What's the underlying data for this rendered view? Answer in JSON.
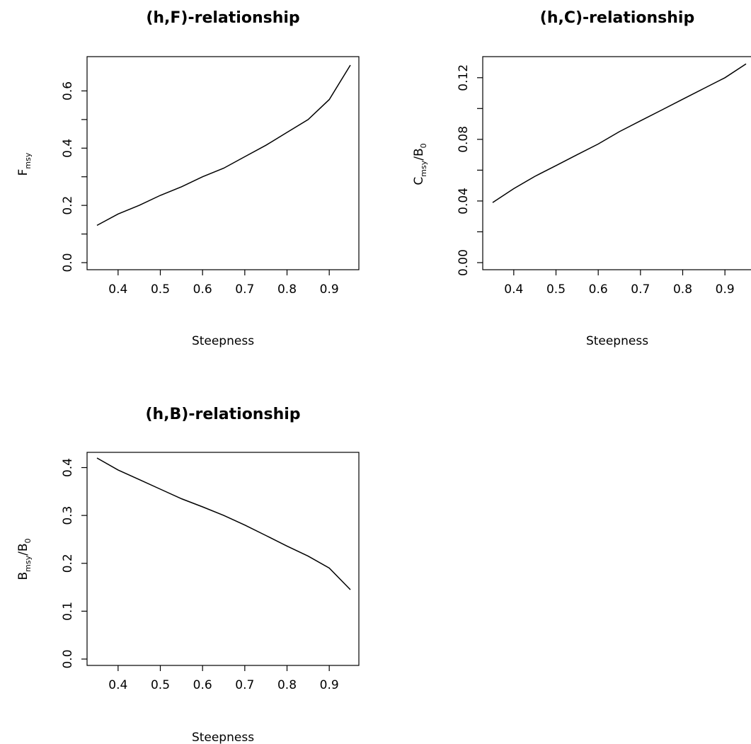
{
  "chart_data": [
    {
      "type": "line",
      "title": "(h,F)-relationship",
      "xlabel": "Steepness",
      "ylabel": "F_msy",
      "ylabel_parts": {
        "main": "F",
        "sub": "msy",
        "slash": "",
        "main2": "",
        "sub2": ""
      },
      "xlim": [
        0.35,
        0.95
      ],
      "ylim": [
        0.0,
        0.7
      ],
      "xticks": [
        0.4,
        0.5,
        0.6,
        0.7,
        0.8,
        0.9
      ],
      "xtick_labels": [
        "0.4",
        "0.5",
        "0.6",
        "0.7",
        "0.8",
        "0.9"
      ],
      "yticks": [
        0.0,
        0.1,
        0.2,
        0.3,
        0.4,
        0.5,
        0.6
      ],
      "ytick_labels": [
        "0.0",
        "",
        "0.2",
        "",
        "0.4",
        "",
        "0.6"
      ],
      "series": [
        {
          "x": [
            0.35,
            0.4,
            0.45,
            0.5,
            0.55,
            0.6,
            0.65,
            0.7,
            0.75,
            0.8,
            0.85,
            0.9,
            0.95
          ],
          "y": [
            0.13,
            0.17,
            0.2,
            0.235,
            0.265,
            0.3,
            0.33,
            0.37,
            0.41,
            0.455,
            0.5,
            0.57,
            0.69
          ]
        }
      ],
      "grid": false
    },
    {
      "type": "line",
      "title": "(h,C)-relationship",
      "xlabel": "Steepness",
      "ylabel": "C_msy/B_0",
      "ylabel_parts": {
        "main": "C",
        "sub": "msy",
        "slash": "/",
        "main2": "B",
        "sub2": "0"
      },
      "xlim": [
        0.35,
        0.95
      ],
      "ylim": [
        0.0,
        0.13
      ],
      "xticks": [
        0.4,
        0.5,
        0.6,
        0.7,
        0.8,
        0.9
      ],
      "xtick_labels": [
        "0.4",
        "0.5",
        "0.6",
        "0.7",
        "0.8",
        "0.9"
      ],
      "yticks": [
        0.0,
        0.02,
        0.04,
        0.06,
        0.08,
        0.1,
        0.12
      ],
      "ytick_labels": [
        "0.00",
        "",
        "0.04",
        "",
        "0.08",
        "",
        "0.12"
      ],
      "series": [
        {
          "x": [
            0.35,
            0.4,
            0.45,
            0.5,
            0.55,
            0.6,
            0.65,
            0.7,
            0.75,
            0.8,
            0.85,
            0.9,
            0.95
          ],
          "y": [
            0.039,
            0.048,
            0.056,
            0.063,
            0.07,
            0.077,
            0.085,
            0.092,
            0.099,
            0.106,
            0.113,
            0.12,
            0.129
          ]
        }
      ],
      "grid": false
    },
    {
      "type": "line",
      "title": "(h,B)-relationship",
      "xlabel": "Steepness",
      "ylabel": "B_msy/B_0",
      "ylabel_parts": {
        "main": "B",
        "sub": "msy",
        "slash": "/",
        "main2": "B",
        "sub2": "0"
      },
      "xlim": [
        0.35,
        0.95
      ],
      "ylim": [
        0.0,
        0.42
      ],
      "xticks": [
        0.4,
        0.5,
        0.6,
        0.7,
        0.8,
        0.9
      ],
      "xtick_labels": [
        "0.4",
        "0.5",
        "0.6",
        "0.7",
        "0.8",
        "0.9"
      ],
      "yticks": [
        0.0,
        0.1,
        0.2,
        0.3,
        0.4
      ],
      "ytick_labels": [
        "0.0",
        "0.1",
        "0.2",
        "0.3",
        "0.4"
      ],
      "series": [
        {
          "x": [
            0.35,
            0.4,
            0.45,
            0.5,
            0.55,
            0.6,
            0.65,
            0.7,
            0.75,
            0.8,
            0.85,
            0.9,
            0.95
          ],
          "y": [
            0.42,
            0.395,
            0.375,
            0.355,
            0.335,
            0.318,
            0.3,
            0.28,
            0.258,
            0.236,
            0.215,
            0.19,
            0.145
          ]
        }
      ],
      "grid": false
    }
  ]
}
